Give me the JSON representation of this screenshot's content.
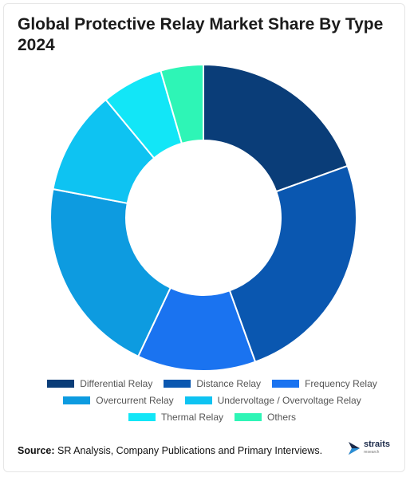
{
  "title": "Global Protective Relay Market Share By Type 2024",
  "source_label": "Source:",
  "source_text": "SR Analysis, Company Publications and Primary Interviews.",
  "logo": {
    "name": "straits",
    "sub": "research",
    "icon": "straits-logo-icon"
  },
  "chart_data": {
    "type": "pie",
    "donut": true,
    "title": "Global Protective Relay Market Share By Type 2024",
    "legend_position": "bottom",
    "categories": [
      "Differential Relay",
      "Distance Relay",
      "Frequency Relay",
      "Overcurrent Relay",
      "Undervoltage / Overvoltage Relay",
      "Thermal Relay",
      "Others"
    ],
    "values": [
      19.5,
      25,
      12.5,
      21,
      11,
      6.5,
      4.5
    ],
    "colors": [
      "#0a3d78",
      "#0a57b0",
      "#1a73f0",
      "#0d9be0",
      "#0ec3f2",
      "#12e6f7",
      "#2ef5b6"
    ]
  }
}
